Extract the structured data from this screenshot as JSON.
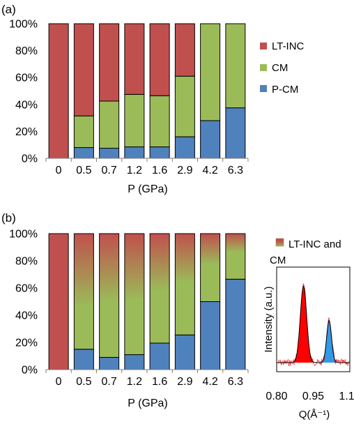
{
  "panel_a": {
    "label": "(a)",
    "legend": [
      "LT-INC",
      "CM",
      "P-CM"
    ]
  },
  "panel_b": {
    "label": "(b)",
    "legend": [
      "LT-INC and",
      "CM"
    ]
  },
  "colors": {
    "lt_inc": "#c0504d",
    "cm": "#9bbb59",
    "p_cm": "#4f81bd",
    "inset_peak1": "#ff0000",
    "inset_peak2": "#2e9be8",
    "inset_data": "#ff0000"
  },
  "chart_data": [
    {
      "type": "bar",
      "stacked": true,
      "title": "",
      "xlabel": "P (GPa)",
      "ylabel": "",
      "ylim": [
        0,
        100
      ],
      "yticks": [
        "0%",
        "20%",
        "40%",
        "60%",
        "80%",
        "100%"
      ],
      "categories": [
        "0",
        "0.5",
        "0.7",
        "1.2",
        "1.6",
        "2.9",
        "4.2",
        "6.3"
      ],
      "series": [
        {
          "name": "P-CM",
          "values": [
            0,
            8,
            7.5,
            8.5,
            8.5,
            16,
            28,
            37.5
          ]
        },
        {
          "name": "CM",
          "values": [
            0,
            23.5,
            35,
            39,
            38,
            45,
            72,
            62.5
          ]
        },
        {
          "name": "LT-INC",
          "values": [
            100,
            68.5,
            57.5,
            52.5,
            53.5,
            39,
            0,
            0
          ]
        }
      ],
      "legend_position": "right"
    },
    {
      "type": "bar",
      "stacked": true,
      "title": "",
      "xlabel": "P (GPa)",
      "ylabel": "",
      "ylim": [
        0,
        100
      ],
      "yticks": [
        "0%",
        "20%",
        "40%",
        "60%",
        "80%",
        "100%"
      ],
      "categories": [
        "0",
        "0.5",
        "0.7",
        "1.2",
        "1.6",
        "2.9",
        "4.2",
        "6.3"
      ],
      "series": [
        {
          "name": "",
          "values": [
            0,
            15,
            9,
            11,
            19.5,
            25.5,
            50,
            66.5
          ]
        },
        {
          "name": "LT-INC and CM",
          "values": [
            100,
            85,
            91,
            89,
            80.5,
            74.5,
            50,
            33.5
          ]
        }
      ],
      "gradient_top_fraction_lt_inc": [
        1.0,
        0.63,
        0.55,
        0.55,
        0.52,
        0.48,
        0.45,
        0.4
      ],
      "legend_position": "right"
    },
    {
      "type": "line",
      "title": "",
      "xlabel": "Q(Å⁻¹)",
      "ylabel": "Intensity (a.u.)",
      "xlim": [
        0.8,
        1.1
      ],
      "xticks": [
        "0.80",
        "0.95",
        "1.10"
      ],
      "peaks": [
        {
          "center": 0.91,
          "width": 0.013,
          "height": 1.0
        },
        {
          "center": 1.015,
          "width": 0.01,
          "height": 0.55
        }
      ]
    }
  ]
}
